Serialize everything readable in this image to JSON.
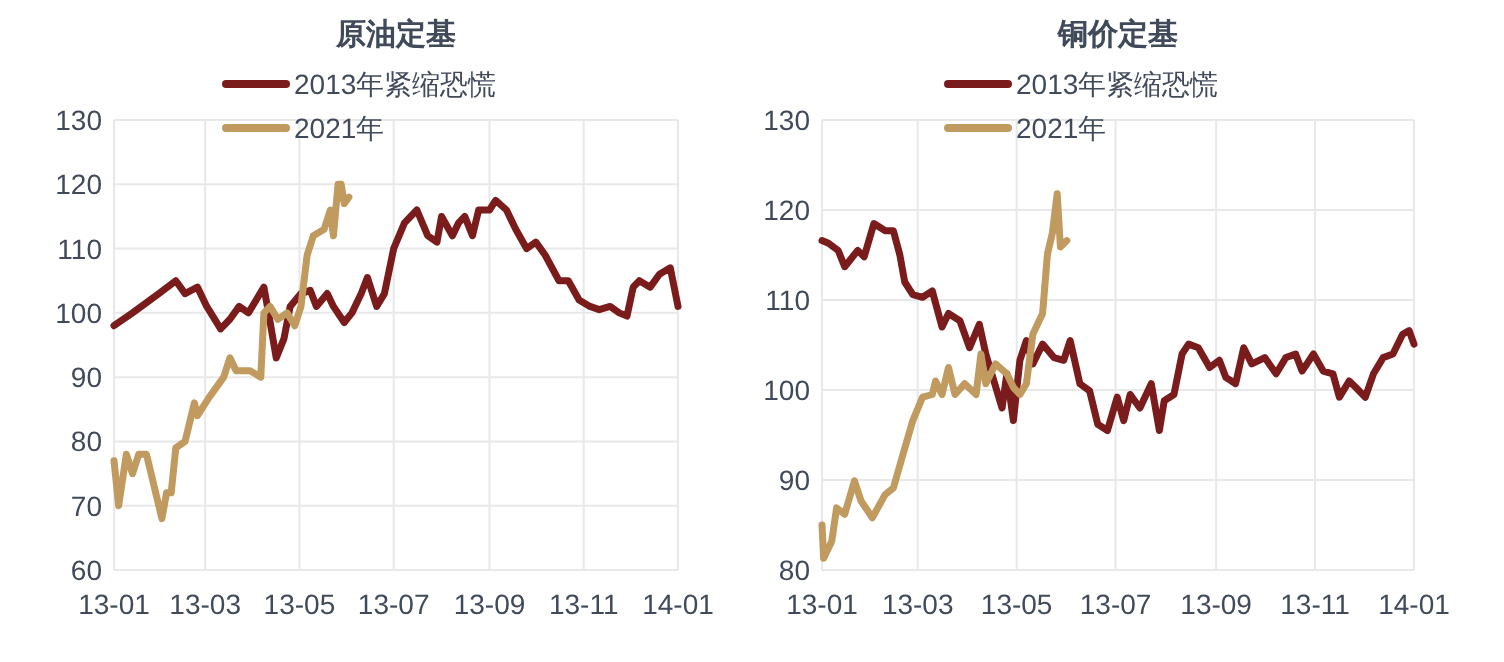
{
  "chart_data": [
    {
      "type": "line",
      "title": "原油定基",
      "xlim": [
        "2013-01-01",
        "2014-01-01"
      ],
      "xticks": [
        {
          "value": "2013-01-01",
          "label": "13-01"
        },
        {
          "value": "2013-03-01",
          "label": "13-03"
        },
        {
          "value": "2013-05-01",
          "label": "13-05"
        },
        {
          "value": "2013-07-01",
          "label": "13-07"
        },
        {
          "value": "2013-09-01",
          "label": "13-09"
        },
        {
          "value": "2013-11-01",
          "label": "13-11"
        },
        {
          "value": "2014-01-01",
          "label": "14-01"
        }
      ],
      "ylim": [
        60,
        130
      ],
      "yticks": [
        60,
        70,
        80,
        90,
        100,
        110,
        120,
        130
      ],
      "grid": true,
      "legend": "top",
      "series": [
        {
          "name": "2013年紧缩恐慌",
          "color": "#7b1c1c",
          "x": [
            "2013-01-01",
            "2013-01-13",
            "2013-01-30",
            "2013-02-10",
            "2013-02-16",
            "2013-02-24",
            "2013-03-02",
            "2013-03-11",
            "2013-03-17",
            "2013-03-23",
            "2013-03-29",
            "2013-04-03",
            "2013-04-08",
            "2013-04-11",
            "2013-04-16",
            "2013-04-21",
            "2013-04-25",
            "2013-05-02",
            "2013-05-08",
            "2013-05-12",
            "2013-05-19",
            "2013-05-23",
            "2013-05-30",
            "2013-06-04",
            "2013-06-10",
            "2013-06-14",
            "2013-06-20",
            "2013-06-25",
            "2013-07-01",
            "2013-07-08",
            "2013-07-16",
            "2013-07-23",
            "2013-07-29",
            "2013-08-01",
            "2013-08-08",
            "2013-08-12",
            "2013-08-16",
            "2013-08-21",
            "2013-08-25",
            "2013-09-01",
            "2013-09-05",
            "2013-09-12",
            "2013-09-18",
            "2013-09-25",
            "2013-10-01",
            "2013-10-07",
            "2013-10-16",
            "2013-10-22",
            "2013-10-29",
            "2013-11-05",
            "2013-11-11",
            "2013-11-18",
            "2013-11-24",
            "2013-11-29",
            "2013-12-03",
            "2013-12-07",
            "2013-12-14",
            "2013-12-20",
            "2013-12-27",
            "2014-01-01"
          ],
          "values": [
            98,
            100,
            103,
            105,
            103,
            104,
            101,
            97.5,
            99,
            101,
            100,
            102,
            104,
            100,
            93,
            96,
            101,
            103,
            103.5,
            101,
            103,
            101,
            98.5,
            100,
            103,
            105.5,
            101,
            103,
            110,
            114,
            116,
            112,
            111,
            115,
            112,
            114,
            115,
            112,
            116,
            116,
            117.5,
            116,
            113,
            110,
            111,
            109,
            105,
            105,
            102,
            101,
            100.5,
            101,
            100,
            99.5,
            104,
            105,
            104,
            106,
            107,
            101
          ]
        },
        {
          "name": "2021年",
          "color": "#c09a5f",
          "x": [
            "2013-01-01",
            "2013-01-04",
            "2013-01-09",
            "2013-01-13",
            "2013-01-17",
            "2013-01-22",
            "2013-01-28",
            "2013-02-01",
            "2013-02-04",
            "2013-02-07",
            "2013-02-10",
            "2013-02-16",
            "2013-02-22",
            "2013-02-24",
            "2013-03-04",
            "2013-03-13",
            "2013-03-17",
            "2013-03-21",
            "2013-03-30",
            "2013-04-06",
            "2013-04-08",
            "2013-04-12",
            "2013-04-17",
            "2013-04-23",
            "2013-04-28",
            "2013-05-02",
            "2013-05-06",
            "2013-05-10",
            "2013-05-17",
            "2013-05-21",
            "2013-05-23",
            "2013-05-26",
            "2013-05-28",
            "2013-05-30",
            "2013-06-02"
          ],
          "values": [
            77,
            70,
            78,
            75,
            78,
            78,
            72,
            68,
            72,
            72,
            79,
            80,
            86,
            84,
            87,
            90,
            93,
            91,
            91,
            90,
            100,
            101,
            99,
            100,
            98,
            101,
            109,
            112,
            113,
            116,
            112,
            120,
            120,
            117,
            118
          ]
        }
      ]
    },
    {
      "type": "line",
      "title": "铜价定基",
      "xlim": [
        "2013-01-01",
        "2014-01-01"
      ],
      "xticks": [
        {
          "value": "2013-01-01",
          "label": "13-01"
        },
        {
          "value": "2013-03-01",
          "label": "13-03"
        },
        {
          "value": "2013-05-01",
          "label": "13-05"
        },
        {
          "value": "2013-07-01",
          "label": "13-07"
        },
        {
          "value": "2013-09-01",
          "label": "13-09"
        },
        {
          "value": "2013-11-01",
          "label": "13-11"
        },
        {
          "value": "2014-01-01",
          "label": "14-01"
        }
      ],
      "ylim": [
        80,
        130
      ],
      "yticks": [
        80,
        90,
        100,
        110,
        120,
        130
      ],
      "grid": true,
      "legend": "top",
      "series": [
        {
          "name": "2013年紧缩恐慌",
          "color": "#7b1c1c",
          "x": [
            "2013-01-01",
            "2013-01-05",
            "2013-01-11",
            "2013-01-15",
            "2013-01-23",
            "2013-01-27",
            "2013-02-02",
            "2013-02-09",
            "2013-02-14",
            "2013-02-18",
            "2013-02-21",
            "2013-02-26",
            "2013-03-04",
            "2013-03-10",
            "2013-03-16",
            "2013-03-20",
            "2013-03-27",
            "2013-04-02",
            "2013-04-08",
            "2013-04-12",
            "2013-04-17",
            "2013-04-22",
            "2013-04-25",
            "2013-04-29",
            "2013-05-03",
            "2013-05-07",
            "2013-05-11",
            "2013-05-17",
            "2013-05-24",
            "2013-05-30",
            "2013-06-03",
            "2013-06-09",
            "2013-06-15",
            "2013-06-20",
            "2013-06-26",
            "2013-07-02",
            "2013-07-06",
            "2013-07-10",
            "2013-07-16",
            "2013-07-23",
            "2013-07-28",
            "2013-07-31",
            "2013-08-06",
            "2013-08-11",
            "2013-08-15",
            "2013-08-21",
            "2013-08-28",
            "2013-09-03",
            "2013-09-07",
            "2013-09-13",
            "2013-09-18",
            "2013-09-23",
            "2013-10-01",
            "2013-10-08",
            "2013-10-14",
            "2013-10-20",
            "2013-10-24",
            "2013-10-31",
            "2013-11-06",
            "2013-11-12",
            "2013-11-16",
            "2013-11-22",
            "2013-11-26",
            "2013-12-02",
            "2013-12-07",
            "2013-12-13",
            "2013-12-19",
            "2013-12-25",
            "2013-12-29",
            "2014-01-01"
          ],
          "values": [
            116.6,
            116.3,
            115.5,
            113.7,
            115.5,
            114.8,
            118.5,
            117.7,
            117.7,
            115,
            112,
            110.6,
            110.3,
            111,
            107,
            108.5,
            107.7,
            104.7,
            107.3,
            104,
            101,
            98,
            101.8,
            96.6,
            103.3,
            105.5,
            102.9,
            105.1,
            103.6,
            103.3,
            105.5,
            100.7,
            99.9,
            96.2,
            95.5,
            99.2,
            96.6,
            99.5,
            98,
            100.7,
            95.5,
            98.8,
            99.5,
            104,
            105.1,
            104.7,
            102.5,
            103.3,
            101.4,
            100.7,
            104.7,
            102.9,
            103.6,
            101.8,
            103.6,
            104,
            102.1,
            104,
            102.1,
            101.8,
            99.2,
            101,
            100.3,
            99.2,
            101.8,
            103.6,
            104,
            106.2,
            106.6,
            105.1
          ]
        },
        {
          "name": "2021年",
          "color": "#c09a5f",
          "x": [
            "2013-01-01",
            "2013-01-02",
            "2013-01-07",
            "2013-01-10",
            "2013-01-15",
            "2013-01-21",
            "2013-01-25",
            "2013-02-01",
            "2013-02-09",
            "2013-02-14",
            "2013-02-20",
            "2013-02-26",
            "2013-03-04",
            "2013-03-10",
            "2013-03-12",
            "2013-03-16",
            "2013-03-20",
            "2013-03-24",
            "2013-03-30",
            "2013-04-06",
            "2013-04-09",
            "2013-04-12",
            "2013-04-18",
            "2013-04-25",
            "2013-04-29",
            "2013-05-03",
            "2013-05-07",
            "2013-05-11",
            "2013-05-17",
            "2013-05-20",
            "2013-05-23",
            "2013-05-26",
            "2013-05-28",
            "2013-06-01"
          ],
          "values": [
            85,
            81.3,
            83.2,
            86.9,
            86.2,
            89.9,
            87.7,
            85.8,
            88.4,
            89.1,
            92.9,
            96.6,
            99.2,
            99.5,
            101,
            99.5,
            102.5,
            99.5,
            100.7,
            99.5,
            104,
            100.7,
            102.9,
            101.8,
            100.3,
            99.5,
            100.7,
            106.2,
            108.5,
            115.1,
            117.4,
            121.8,
            115.9,
            116.6
          ]
        }
      ]
    }
  ]
}
